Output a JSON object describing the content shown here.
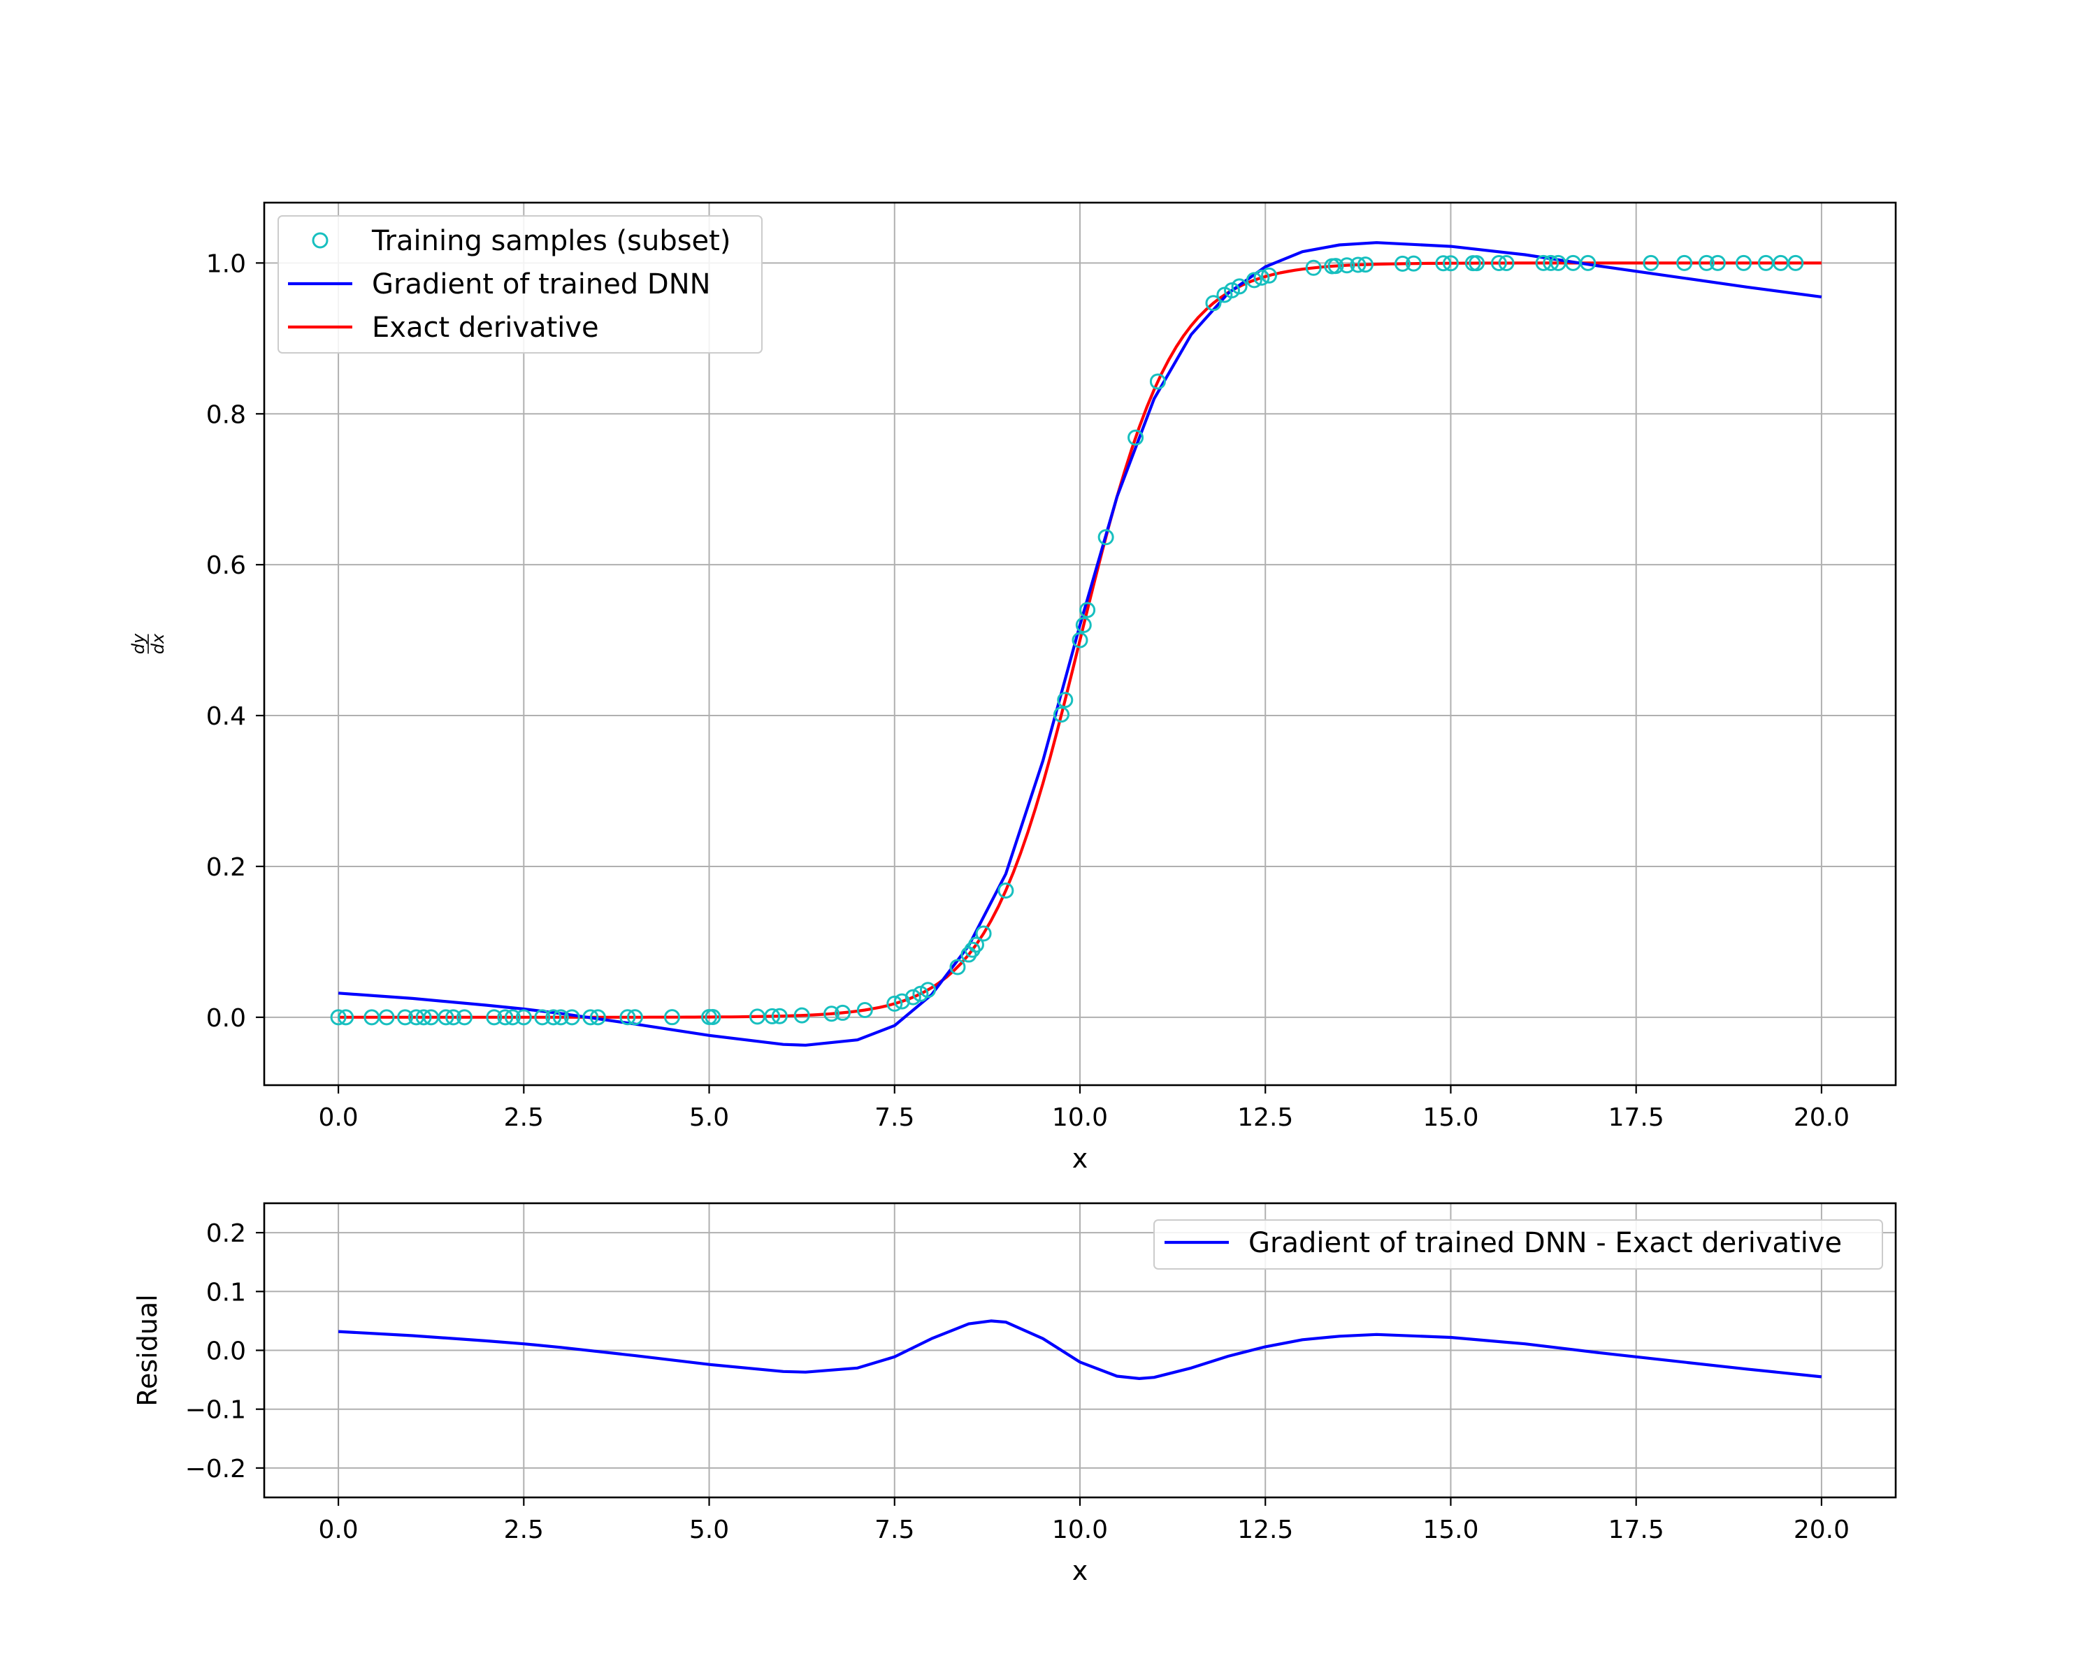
{
  "chart_data": [
    {
      "type": "line",
      "xlabel": "x",
      "ylabel_num": "dy",
      "ylabel_den": "dx",
      "xlim": [
        -1.0,
        21.0
      ],
      "ylim": [
        -0.09,
        1.08
      ],
      "xticks": [
        "0.0",
        "2.5",
        "5.0",
        "7.5",
        "10.0",
        "12.5",
        "15.0",
        "17.5",
        "20.0"
      ],
      "yticks": [
        "0.0",
        "0.2",
        "0.4",
        "0.6",
        "0.8",
        "1.0"
      ],
      "grid": true,
      "legend_position": "upper-left",
      "legend": [
        "Training samples (subset)",
        "Gradient of trained DNN",
        "Exact derivative"
      ],
      "colors": {
        "samples": "#17bfbf",
        "dnn": "#0000ff",
        "exact": "#ff0000"
      },
      "exact_derivative": {
        "name": "Exact derivative",
        "function": "logistic",
        "center": 10.0,
        "steepness": 1.6,
        "x_range": [
          0,
          20
        ]
      },
      "dnn_gradient": {
        "name": "Gradient of trained DNN",
        "x": [
          0,
          1,
          2,
          2.5,
          3,
          4,
          5,
          6,
          6.3,
          7,
          7.5,
          8,
          8.5,
          9,
          9.5,
          10,
          10.5,
          11,
          11.5,
          12,
          12.5,
          13,
          13.5,
          14,
          15,
          16,
          17,
          18,
          19,
          20
        ],
        "y": [
          0.032,
          0.025,
          0.016,
          0.011,
          0.005,
          -0.009,
          -0.024,
          -0.036,
          -0.037,
          -0.03,
          -0.011,
          0.03,
          0.095,
          0.19,
          0.34,
          0.52,
          0.69,
          0.82,
          0.905,
          0.96,
          0.995,
          1.015,
          1.024,
          1.027,
          1.022,
          1.011,
          0.996,
          0.982,
          0.968,
          0.955
        ]
      },
      "training_samples": {
        "name": "Training samples (subset)",
        "x": [
          0.0,
          0.1,
          0.45,
          0.65,
          0.9,
          1.05,
          1.15,
          1.25,
          1.45,
          1.55,
          1.7,
          2.1,
          2.25,
          2.35,
          2.5,
          2.75,
          2.9,
          3.0,
          3.15,
          3.4,
          3.5,
          3.9,
          4.0,
          4.5,
          5.0,
          5.05,
          5.65,
          5.85,
          5.95,
          6.25,
          6.65,
          6.8,
          7.1,
          7.5,
          7.6,
          7.75,
          7.85,
          7.95,
          8.35,
          8.5,
          8.55,
          8.6,
          8.7,
          9.0,
          9.75,
          9.8,
          10.0,
          10.05,
          10.1,
          10.35,
          10.75,
          11.05,
          11.8,
          11.95,
          12.05,
          12.15,
          12.35,
          12.45,
          12.55,
          13.15,
          13.4,
          13.45,
          13.6,
          13.75,
          13.85,
          14.35,
          14.5,
          14.9,
          15.0,
          15.3,
          15.35,
          15.65,
          15.75,
          16.25,
          16.35,
          16.45,
          16.65,
          16.85,
          17.7,
          18.15,
          18.45,
          18.6,
          18.95,
          19.25,
          19.45,
          19.65
        ]
      }
    },
    {
      "type": "line",
      "xlabel": "x",
      "ylabel": "Residual",
      "xlim": [
        -1.0,
        21.0
      ],
      "ylim": [
        -0.25,
        0.25
      ],
      "xticks": [
        "0.0",
        "2.5",
        "5.0",
        "7.5",
        "10.0",
        "12.5",
        "15.0",
        "17.5",
        "20.0"
      ],
      "yticks": [
        "0.2",
        "0.1",
        "0.0",
        "−0.1",
        "−0.2"
      ],
      "grid": true,
      "legend_position": "upper-right",
      "legend": [
        "Gradient of trained DNN - Exact derivative"
      ],
      "series": [
        {
          "name": "Gradient of trained DNN - Exact derivative",
          "x": [
            0,
            1,
            2,
            2.5,
            3,
            4,
            5,
            6,
            6.3,
            7,
            7.5,
            8,
            8.5,
            8.8,
            9,
            9.5,
            10,
            10.5,
            10.8,
            11,
            11.5,
            12,
            12.5,
            13,
            13.5,
            14,
            15,
            16,
            17,
            18,
            19,
            20
          ],
          "y": [
            0.032,
            0.025,
            0.016,
            0.011,
            0.005,
            -0.009,
            -0.024,
            -0.036,
            -0.037,
            -0.03,
            -0.011,
            0.02,
            0.045,
            0.05,
            0.048,
            0.02,
            -0.02,
            -0.044,
            -0.048,
            -0.046,
            -0.03,
            -0.01,
            0.006,
            0.018,
            0.024,
            0.027,
            0.022,
            0.011,
            -0.004,
            -0.018,
            -0.032,
            -0.045
          ]
        }
      ]
    }
  ]
}
